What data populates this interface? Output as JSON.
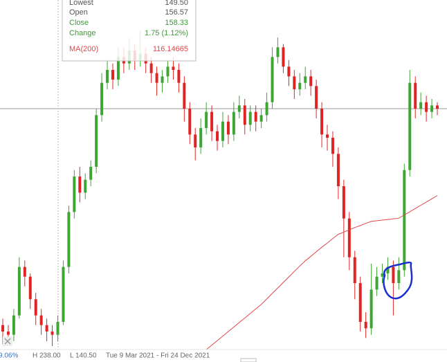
{
  "chart_data": {
    "type": "candlestick",
    "colors": {
      "up": "#3fa535",
      "down": "#e02424"
    },
    "open": [
      147,
      145,
      144,
      150,
      165,
      162,
      155,
      150,
      147,
      145,
      144,
      148,
      165,
      182,
      193,
      188,
      192,
      196,
      212,
      222,
      226,
      223,
      230,
      228,
      232,
      229,
      231,
      228,
      225,
      222,
      224,
      227,
      226,
      222,
      214,
      206,
      202,
      208,
      213,
      207,
      204,
      210,
      206,
      213,
      215,
      209,
      213,
      210,
      212,
      216,
      230,
      233,
      227,
      224,
      220,
      222,
      224,
      221,
      214,
      206,
      205,
      200,
      190,
      180,
      168,
      160,
      148,
      146,
      158,
      162,
      163,
      165,
      160,
      164,
      195,
      222,
      214,
      216,
      213,
      215
    ],
    "high": [
      149,
      147,
      152,
      168,
      167,
      163,
      157,
      152,
      149,
      147,
      150,
      167,
      184,
      195,
      196,
      194,
      198,
      214,
      225,
      229,
      228,
      233,
      233,
      236,
      234,
      238,
      233,
      230,
      227,
      226,
      229,
      230,
      228,
      224,
      216,
      208,
      211,
      216,
      215,
      209,
      213,
      212,
      216,
      218,
      217,
      215,
      215,
      214,
      219,
      233,
      236,
      234,
      229,
      226,
      225,
      227,
      226,
      223,
      216,
      209,
      207,
      202,
      192,
      182,
      170,
      162,
      151,
      166,
      165,
      166,
      168,
      167,
      168,
      197,
      226,
      224,
      219,
      218,
      217,
      216
    ],
    "low": [
      141,
      141,
      142,
      149,
      159,
      152,
      147,
      144,
      142,
      140.5,
      142,
      147,
      163,
      180,
      185,
      186,
      190,
      194,
      210,
      220,
      220,
      221,
      225,
      226,
      226,
      227,
      225,
      222,
      218,
      219,
      222,
      223,
      219,
      210,
      203,
      198,
      200,
      206,
      204,
      201,
      202,
      203,
      204,
      211,
      206,
      207,
      207,
      208,
      210,
      214,
      228,
      225,
      221,
      217,
      218,
      220,
      218,
      211,
      202,
      201,
      196,
      186,
      168,
      164,
      155,
      145,
      143,
      144,
      156,
      160,
      161,
      150,
      158,
      162,
      193,
      211,
      212,
      210,
      211,
      212
    ],
    "close": [
      145,
      144,
      150,
      165,
      162,
      155,
      150,
      147,
      145,
      144,
      148,
      165,
      182,
      193,
      188,
      192,
      196,
      212,
      222,
      226,
      223,
      230,
      228,
      232,
      229,
      231,
      228,
      225,
      222,
      224,
      227,
      226,
      222,
      214,
      206,
      202,
      208,
      213,
      207,
      204,
      210,
      206,
      213,
      215,
      209,
      213,
      210,
      212,
      216,
      230,
      233,
      227,
      224,
      220,
      222,
      224,
      221,
      214,
      206,
      205,
      200,
      190,
      180,
      168,
      160,
      148,
      146,
      158,
      162,
      163,
      165,
      160,
      164,
      195,
      222,
      214,
      216,
      213,
      215,
      214
    ],
    "ma": {
      "name": "MA(200)",
      "color": "#e0474c",
      "values": [
        null,
        null,
        null,
        null,
        null,
        null,
        null,
        null,
        null,
        null,
        null,
        null,
        null,
        null,
        null,
        null,
        null,
        null,
        null,
        null,
        null,
        null,
        null,
        null,
        null,
        null,
        null,
        null,
        null,
        null,
        null,
        null,
        null,
        null,
        null,
        null,
        null,
        139.4,
        140.8,
        142.2,
        143.6,
        145.0,
        146.4,
        147.8,
        149.2,
        150.6,
        152.0,
        153.4,
        155.1,
        156.8,
        158.5,
        160.2,
        161.9,
        163.6,
        165.3,
        166.9,
        168.3,
        169.7,
        171.1,
        172.4,
        173.8,
        175.1,
        175.8,
        176.5,
        177.2,
        177.8,
        178.5,
        179.1,
        179.3,
        179.5,
        179.7,
        179.9,
        180.1,
        181.1,
        182.1,
        183.1,
        184.1,
        185.1,
        186.1,
        187.1
      ]
    }
  },
  "tooltip": {
    "lowest": {
      "label": "Lowest",
      "value": "149.50"
    },
    "open": {
      "label": "Open",
      "value": "156.57"
    },
    "close": {
      "label": "Close",
      "value": "158.33"
    },
    "change": {
      "label": "Change",
      "value": "1.75 (1.12%)"
    },
    "ma": {
      "value": "116.14665"
    }
  },
  "footer": {
    "change": "9.06%",
    "high": "H 238.00",
    "low": "L 140.50",
    "range": "Tue 9 Mar 2021 - Fri 24 Dec 2021"
  }
}
